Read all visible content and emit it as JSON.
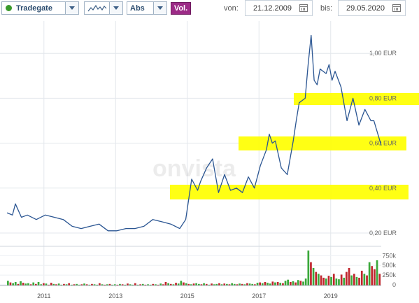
{
  "toolbar": {
    "exchange": "Tradegate",
    "scale": "Abs",
    "volume_button": "Vol.",
    "from_label": "von:",
    "from_date": "21.12.2009",
    "to_label": "bis:",
    "to_date": "29.05.2020"
  },
  "watermark": "onvista",
  "colors": {
    "price_line": "#2a5592",
    "highlight": "#ffff00",
    "volume_up": "#3aa83a",
    "volume_down": "#c0262d",
    "volume_button": "#9c2a86"
  },
  "chart_data": [
    {
      "type": "line",
      "x": [
        "2009-12-21",
        "2010-02",
        "2010-03",
        "2010-05",
        "2010-07",
        "2010-10",
        "2011-01",
        "2011-04",
        "2011-07",
        "2011-10",
        "2012-01",
        "2012-04",
        "2012-07",
        "2012-10",
        "2013-01",
        "2013-04",
        "2013-07",
        "2013-10",
        "2014-01",
        "2014-04",
        "2014-07",
        "2014-10",
        "2014-12",
        "2015-02",
        "2015-04",
        "2015-05",
        "2015-07",
        "2015-09",
        "2015-11",
        "2016-01",
        "2016-03",
        "2016-05",
        "2016-07",
        "2016-09",
        "2016-11",
        "2017-01",
        "2017-03",
        "2017-04",
        "2017-05",
        "2017-06",
        "2017-08",
        "2017-10",
        "2017-12",
        "2018-01",
        "2018-02",
        "2018-03",
        "2018-04",
        "2018-05",
        "2018-06",
        "2018-07",
        "2018-08",
        "2018-09",
        "2018-10",
        "2018-11",
        "2018-12",
        "2019-01",
        "2019-02",
        "2019-04",
        "2019-06",
        "2019-08",
        "2019-10",
        "2019-12",
        "2020-02",
        "2020-03",
        "2020-05-29"
      ],
      "y": [
        0.29,
        0.28,
        0.33,
        0.27,
        0.28,
        0.26,
        0.28,
        0.27,
        0.26,
        0.23,
        0.22,
        0.23,
        0.24,
        0.21,
        0.21,
        0.22,
        0.22,
        0.23,
        0.26,
        0.25,
        0.24,
        0.22,
        0.26,
        0.44,
        0.39,
        0.43,
        0.49,
        0.53,
        0.38,
        0.46,
        0.39,
        0.4,
        0.38,
        0.45,
        0.4,
        0.5,
        0.57,
        0.64,
        0.6,
        0.61,
        0.49,
        0.46,
        0.61,
        0.7,
        0.78,
        0.79,
        0.8,
        0.95,
        1.08,
        0.88,
        0.86,
        0.93,
        0.92,
        0.91,
        0.95,
        0.88,
        0.92,
        0.85,
        0.7,
        0.8,
        0.68,
        0.75,
        0.7,
        0.7,
        0.59
      ],
      "y_ticks": [
        "1,00 EUR",
        "0,80 EUR",
        "0,60 EUR",
        "0,40 EUR",
        "0,20 EUR"
      ],
      "y_tick_values": [
        1.0,
        0.8,
        0.6,
        0.4,
        0.2
      ],
      "ylim": [
        0.15,
        1.1
      ],
      "grid": true
    },
    {
      "type": "bar",
      "ylabels": [
        "750k",
        "500k",
        "250k",
        "0"
      ],
      "y_tick_values": [
        750000,
        500000,
        250000,
        0
      ],
      "x_ticks": [
        "2011",
        "2013",
        "2015",
        "2017",
        "2019"
      ],
      "x_tick_values": [
        2011,
        2013,
        2015,
        2017,
        2019
      ],
      "xlim": [
        2009.97,
        2020.41
      ],
      "ylim": [
        0,
        900000
      ],
      "x_start": 2009.97,
      "x_end": 2020.41,
      "volumes": [
        120000,
        80000,
        60000,
        90000,
        40000,
        110000,
        70000,
        50000,
        60000,
        30000,
        80000,
        40000,
        90000,
        30000,
        60000,
        50000,
        20000,
        70000,
        40000,
        30000,
        50000,
        20000,
        40000,
        30000,
        60000,
        20000,
        30000,
        40000,
        20000,
        30000,
        50000,
        30000,
        20000,
        40000,
        30000,
        20000,
        60000,
        30000,
        20000,
        30000,
        40000,
        20000,
        30000,
        20000,
        40000,
        30000,
        20000,
        50000,
        30000,
        20000,
        60000,
        20000,
        30000,
        40000,
        20000,
        30000,
        20000,
        40000,
        30000,
        20000,
        50000,
        30000,
        90000,
        60000,
        40000,
        30000,
        70000,
        50000,
        120000,
        80000,
        60000,
        40000,
        30000,
        50000,
        60000,
        40000,
        30000,
        60000,
        40000,
        20000,
        50000,
        30000,
        40000,
        60000,
        30000,
        50000,
        40000,
        30000,
        60000,
        40000,
        30000,
        50000,
        40000,
        30000,
        60000,
        50000,
        40000,
        30000,
        70000,
        80000,
        60000,
        90000,
        70000,
        50000,
        100000,
        80000,
        90000,
        70000,
        60000,
        120000,
        150000,
        90000,
        110000,
        80000,
        140000,
        120000,
        100000,
        180000,
        900000,
        600000,
        450000,
        350000,
        300000,
        260000,
        200000,
        180000,
        250000,
        220000,
        300000,
        180000,
        160000,
        280000,
        200000,
        350000,
        450000,
        260000,
        300000,
        220000,
        200000,
        380000,
        300000,
        260000,
        600000,
        500000,
        420000,
        650000,
        300000
      ],
      "up": [
        1,
        0,
        1,
        1,
        0,
        1,
        0,
        1,
        1,
        0,
        1,
        0,
        1,
        1,
        0,
        1,
        0,
        0,
        1,
        0,
        1,
        1,
        0,
        1,
        0,
        1,
        0,
        1,
        1,
        0,
        1,
        0,
        1,
        0,
        1,
        1,
        0,
        1,
        0,
        1,
        0,
        1,
        1,
        0,
        1,
        0,
        1,
        0,
        1,
        1,
        0,
        1,
        0,
        1,
        0,
        1,
        1,
        0,
        1,
        0,
        1,
        0,
        0,
        1,
        0,
        1,
        0,
        1,
        1,
        0,
        1,
        0,
        1,
        0,
        1,
        1,
        0,
        1,
        0,
        1,
        0,
        1,
        1,
        0,
        1,
        0,
        1,
        0,
        1,
        1,
        0,
        1,
        0,
        1,
        0,
        1,
        1,
        0,
        1,
        0,
        1,
        0,
        1,
        1,
        0,
        1,
        0,
        1,
        0,
        1,
        1,
        0,
        1,
        0,
        1,
        0,
        1,
        1,
        1,
        0,
        1,
        0,
        1,
        0,
        0,
        1,
        0,
        1,
        0,
        1,
        1,
        0,
        1,
        0,
        0,
        1,
        0,
        1,
        0,
        0,
        1,
        0,
        1,
        0,
        0,
        1,
        0
      ]
    }
  ]
}
